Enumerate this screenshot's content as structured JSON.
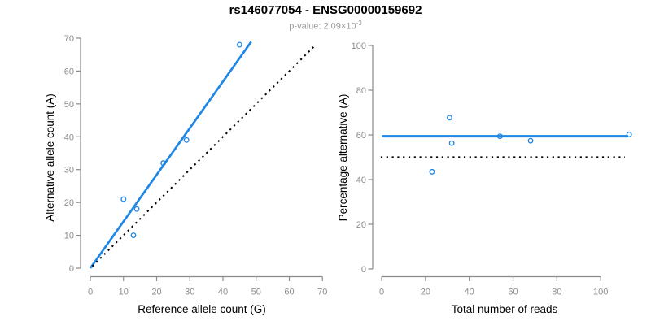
{
  "header": {
    "title": "rs146077054 - ENSG00000159692",
    "pvalue_prefix": "p-value: 2.09×10",
    "pvalue_exponent": "-3"
  },
  "style": {
    "accent_blue": "#1e86e5",
    "axis_gray": "#8a8a8a",
    "tick_label_gray": "#8c8c8c",
    "axis_title_black": "#000000",
    "subtitle_gray": "#999999",
    "background": "#ffffff"
  },
  "chart_data": [
    {
      "type": "scatter",
      "title": "",
      "xlabel": "Reference allele count (G)",
      "ylabel": "Alternative allele count (A)",
      "xlim": [
        0,
        70
      ],
      "ylim": [
        0,
        70
      ],
      "xticks": [
        0,
        10,
        20,
        30,
        40,
        50,
        60,
        70
      ],
      "yticks": [
        0,
        10,
        20,
        30,
        40,
        50,
        60,
        70
      ],
      "grid": false,
      "points": [
        [
          10,
          21
        ],
        [
          13,
          10
        ],
        [
          14,
          18
        ],
        [
          22,
          32
        ],
        [
          29,
          39
        ],
        [
          45,
          68
        ]
      ],
      "lines": [
        {
          "name": "regression-line",
          "style": "solid",
          "color": "#1e86e5",
          "width": 2.7,
          "x1": 0,
          "y1": 0,
          "x2": 48.5,
          "y2": 68.9
        },
        {
          "name": "identity-line",
          "style": "dotted",
          "color": "#000000",
          "width": 2,
          "x1": 0.6,
          "y1": 0.6,
          "x2": 67.6,
          "y2": 67.6
        }
      ]
    },
    {
      "type": "scatter",
      "title": "",
      "xlabel": "Total number of reads",
      "ylabel": "Percentage alternative (A)",
      "xlim": [
        0,
        116
      ],
      "ylim": [
        0,
        100
      ],
      "xticks": [
        0,
        20,
        40,
        60,
        80,
        100
      ],
      "yticks": [
        0,
        20,
        40,
        60,
        80,
        100
      ],
      "grid": false,
      "points": [
        [
          23,
          43.5
        ],
        [
          31,
          67.7
        ],
        [
          32,
          56.3
        ],
        [
          54,
          59.4
        ],
        [
          68,
          57.4
        ],
        [
          113,
          60.2
        ]
      ],
      "lines": [
        {
          "name": "mean-line",
          "style": "solid",
          "color": "#1e86e5",
          "width": 3,
          "x1": 0,
          "y1": 59.4,
          "x2": 112.5,
          "y2": 59.4
        },
        {
          "name": "reference-line",
          "style": "dotted",
          "color": "#000000",
          "width": 2.2,
          "x1": -0.4,
          "y1": 50,
          "x2": 111,
          "y2": 50
        }
      ]
    }
  ]
}
